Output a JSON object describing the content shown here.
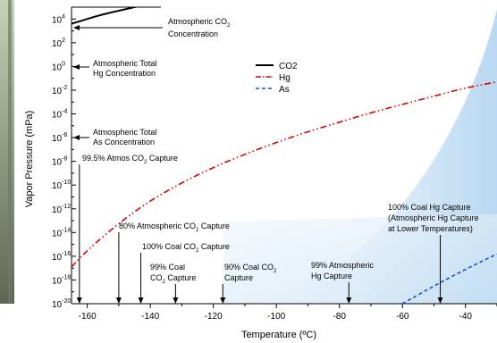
{
  "chart_data": {
    "type": "line",
    "title": "",
    "xlabel": "Temperature (ºC)",
    "ylabel": "Vapor Pressure (mPa)",
    "xlim": [
      -165,
      -30
    ],
    "ylim_log10": [
      -20,
      5
    ],
    "x_ticks": [
      -160,
      -140,
      -120,
      -100,
      -80,
      -60,
      -40
    ],
    "y_tick_labels": [
      {
        "mantissa": "10",
        "exp": "4",
        "v": 4
      },
      {
        "mantissa": "10",
        "exp": "2",
        "v": 2
      },
      {
        "mantissa": "10",
        "exp": "0",
        "v": 0
      },
      {
        "mantissa": "10",
        "exp": "-2",
        "v": -2
      },
      {
        "mantissa": "10",
        "exp": "-4",
        "v": -4
      },
      {
        "mantissa": "10",
        "exp": "-6",
        "v": -6
      },
      {
        "mantissa": "10",
        "exp": "-8",
        "v": -8
      },
      {
        "mantissa": "10",
        "exp": "-10",
        "v": -10
      },
      {
        "mantissa": "10",
        "exp": "-12",
        "v": -12
      },
      {
        "mantissa": "10",
        "exp": "-14",
        "v": -14
      },
      {
        "mantissa": "10",
        "exp": "-16",
        "v": -16
      },
      {
        "mantissa": "10",
        "exp": "-18",
        "v": -18
      },
      {
        "mantissa": "10",
        "exp": "-20",
        "v": -20
      }
    ],
    "legend": {
      "placement": "top-center",
      "entries": [
        {
          "label": "CO2",
          "color": "#000000",
          "dash": "solid"
        },
        {
          "label": "Hg",
          "color": "#dd0000",
          "dash": "dash-dot-dot"
        },
        {
          "label": "As",
          "color": "#1a4fd6",
          "dash": "dashed"
        }
      ]
    },
    "series": [
      {
        "name": "CO2",
        "color": "#000000",
        "x": [
          -165,
          -160,
          -155,
          -150,
          -145,
          -140,
          -135
        ],
        "log10_y": [
          3.6,
          4.0,
          4.4,
          4.7,
          5.0,
          5.3,
          5.6
        ]
      },
      {
        "name": "Hg",
        "color": "#dd0000",
        "x": [
          -165,
          -160,
          -150,
          -140,
          -130,
          -120,
          -110,
          -100,
          -90,
          -80,
          -70,
          -60,
          -50,
          -40,
          -30
        ],
        "log10_y": [
          -16.9,
          -15.5,
          -13.2,
          -11.3,
          -9.8,
          -8.5,
          -7.4,
          -6.4,
          -5.5,
          -4.7,
          -3.9,
          -3.2,
          -2.5,
          -1.8,
          -1.3
        ]
      },
      {
        "name": "As",
        "color": "#1a4fd6",
        "x": [
          -60,
          -50,
          -40,
          -30
        ],
        "log10_y": [
          -20,
          -18.5,
          -17.1,
          -15.8
        ]
      }
    ],
    "annotations": {
      "co2_conc": {
        "line1": "Atmospheric CO",
        "sub": "2",
        "line2": "Concentration"
      },
      "hg_conc": {
        "line1": "Atmospheric Total",
        "line2": "Hg Concentration"
      },
      "as_conc": {
        "line1": "Atmospheric Total",
        "line2": "As Concentration"
      },
      "atmos_co2_995": {
        "pre": "99.5% Atmos CO",
        "sub": "2",
        "post": " Capture",
        "x": -162.5
      },
      "atmos_co2_80": {
        "pre": "80% Atmospheric CO",
        "sub": "2",
        "post": " Capture",
        "x": -150
      },
      "coal_co2_100": {
        "pre": "100% Coal CO",
        "sub": "2",
        "post": " Capture",
        "x": -143
      },
      "coal_co2_99": {
        "line1": "99% Coal",
        "pre2": "CO",
        "sub": "2",
        "post2": " Capture",
        "x": -132
      },
      "coal_co2_90": {
        "pre": "90% Coal CO",
        "sub": "2",
        "line2": "Capture",
        "x": -117
      },
      "atmos_hg_99": {
        "line1": "99% Atmospheric",
        "line2": "Hg Capture",
        "x": -77
      },
      "coal_hg_100": {
        "line1": "100% Coal Hg Capture",
        "line2": "(Atmospheric Hg Capture",
        "line3": "at Lower Temperatures)",
        "x": -48
      }
    }
  }
}
